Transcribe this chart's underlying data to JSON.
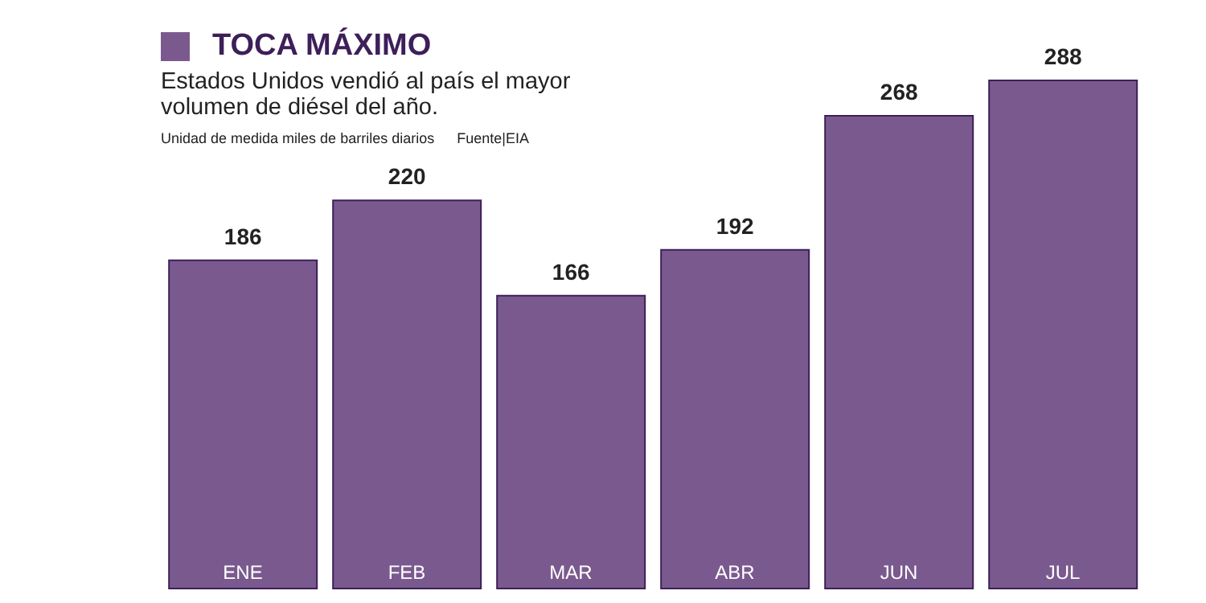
{
  "chart_data": {
    "type": "bar",
    "title": "TOCA MÁXIMO",
    "subtitle": "Estados Unidos vendió al país el mayor volumen de diésel del año.",
    "annotations": [
      "Unidad de medida miles de barriles diarios",
      "Fuente|EIA"
    ],
    "categories": [
      "ENE",
      "FEB",
      "MAR",
      "ABR",
      "JUN",
      "JUL"
    ],
    "values": [
      186,
      220,
      166,
      192,
      268,
      288
    ],
    "color": "#7a5a8e",
    "data_labels": true,
    "grid": false,
    "legend": false
  }
}
